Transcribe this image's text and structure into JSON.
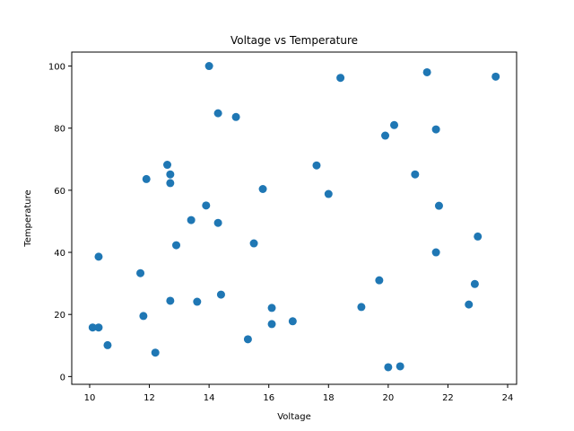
{
  "chart_data": {
    "type": "scatter",
    "title": "Voltage vs Temperature",
    "xlabel": "Voltage",
    "ylabel": "Temperature",
    "xlim": [
      9.4,
      24.3
    ],
    "ylim": [
      -2.5,
      104.5
    ],
    "xticks": [
      10,
      12,
      14,
      16,
      18,
      20,
      22,
      24
    ],
    "yticks": [
      0,
      20,
      40,
      60,
      80,
      100
    ],
    "grid": false,
    "marker_color": "#1f77b4",
    "points": [
      [
        10.1,
        15.8
      ],
      [
        10.3,
        15.8
      ],
      [
        10.6,
        10.1
      ],
      [
        10.3,
        38.6
      ],
      [
        11.7,
        33.3
      ],
      [
        11.8,
        19.5
      ],
      [
        11.9,
        63.6
      ],
      [
        12.2,
        7.7
      ],
      [
        12.6,
        68.2
      ],
      [
        12.7,
        65.1
      ],
      [
        12.7,
        62.3
      ],
      [
        12.7,
        24.4
      ],
      [
        12.9,
        42.3
      ],
      [
        13.4,
        50.4
      ],
      [
        13.6,
        24.1
      ],
      [
        13.9,
        55.1
      ],
      [
        14.0,
        100.0
      ],
      [
        14.3,
        84.8
      ],
      [
        14.3,
        49.5
      ],
      [
        14.4,
        26.4
      ],
      [
        14.9,
        83.6
      ],
      [
        15.3,
        12.0
      ],
      [
        15.5,
        42.9
      ],
      [
        15.8,
        60.4
      ],
      [
        16.1,
        22.1
      ],
      [
        16.1,
        16.9
      ],
      [
        16.8,
        17.8
      ],
      [
        17.6,
        68.0
      ],
      [
        18.0,
        58.8
      ],
      [
        18.4,
        96.2
      ],
      [
        19.1,
        22.4
      ],
      [
        19.7,
        31.0
      ],
      [
        19.9,
        77.6
      ],
      [
        20.0,
        3.0
      ],
      [
        20.2,
        81.0
      ],
      [
        20.4,
        3.3
      ],
      [
        20.9,
        65.1
      ],
      [
        21.3,
        98.0
      ],
      [
        21.6,
        79.6
      ],
      [
        21.6,
        40.0
      ],
      [
        21.7,
        55.0
      ],
      [
        22.7,
        23.2
      ],
      [
        22.9,
        29.8
      ],
      [
        23.0,
        45.1
      ],
      [
        23.6,
        96.6
      ]
    ]
  }
}
